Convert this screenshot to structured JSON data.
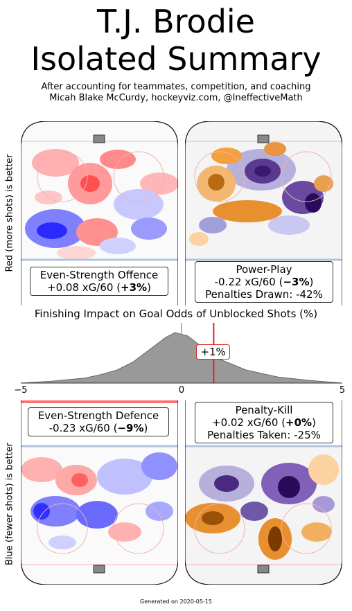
{
  "header": {
    "title_line1": "T.J. Brodie",
    "title_line2": "Isolated Summary",
    "subtitle_line1": "After accounting for teammates, competition, and coaching",
    "subtitle_line2": "Micah Blake McCurdy, hockeyviz.com, @IneffectiveMath"
  },
  "axis_labels": {
    "top": "Red (more shots) is better",
    "bottom": "Blue (fewer shots) is better"
  },
  "panels": {
    "es_offence": {
      "line1": "Even-Strength Offence",
      "line2_pre": "+0.08 xG/60 (",
      "pct": "+3%",
      "line2_post": ")"
    },
    "power_play": {
      "line1": "Power-Play",
      "line2_pre": "-0.22 xG/60 (",
      "pct": "−3%",
      "line2_post": ")",
      "line3": "Penalties Drawn: -42%"
    },
    "es_defence": {
      "line1": "Even-Strength Defence",
      "line2_pre": "-0.23 xG/60 (",
      "pct": "−9%",
      "line2_post": ")"
    },
    "penalty_kill": {
      "line1": "Penalty-Kill",
      "line2_pre": "+0.02 xG/60 (",
      "pct": "+0%",
      "line2_post": ")",
      "line3": "Penalties Taken: -25%"
    }
  },
  "finishing": {
    "title": "Finishing Impact on Goal Odds of Unblocked Shots (%)",
    "badge": "+1%",
    "ticks": [
      "−5",
      "0",
      "5"
    ]
  },
  "footer": "Generated on 2020-05-15",
  "colors": {
    "red": "#ff3030",
    "blue": "#2020ff",
    "purple": "#3a1a6e",
    "orange": "#e8902a",
    "marker": "#e02020",
    "density": "#999999"
  },
  "chart_data": {
    "type": "area",
    "title": "Finishing Impact on Goal Odds of Unblocked Shots (%)",
    "xlim": [
      -5,
      5
    ],
    "x_ticks": [
      -5,
      0,
      5
    ],
    "marker_value": 1,
    "marker_label": "+1%",
    "density": [
      {
        "x": -5.0,
        "y": 0.0
      },
      {
        "x": -4.5,
        "y": 0.02
      },
      {
        "x": -4.0,
        "y": 0.04
      },
      {
        "x": -3.5,
        "y": 0.07
      },
      {
        "x": -3.0,
        "y": 0.1
      },
      {
        "x": -2.5,
        "y": 0.17
      },
      {
        "x": -2.0,
        "y": 0.26
      },
      {
        "x": -1.5,
        "y": 0.42
      },
      {
        "x": -1.0,
        "y": 0.66
      },
      {
        "x": -0.5,
        "y": 0.9
      },
      {
        "x": -0.2,
        "y": 1.0
      },
      {
        "x": 0.2,
        "y": 0.93
      },
      {
        "x": 0.7,
        "y": 0.68
      },
      {
        "x": 1.2,
        "y": 0.47
      },
      {
        "x": 2.0,
        "y": 0.26
      },
      {
        "x": 3.0,
        "y": 0.12
      },
      {
        "x": 4.0,
        "y": 0.05
      },
      {
        "x": 5.0,
        "y": 0.0
      }
    ]
  }
}
